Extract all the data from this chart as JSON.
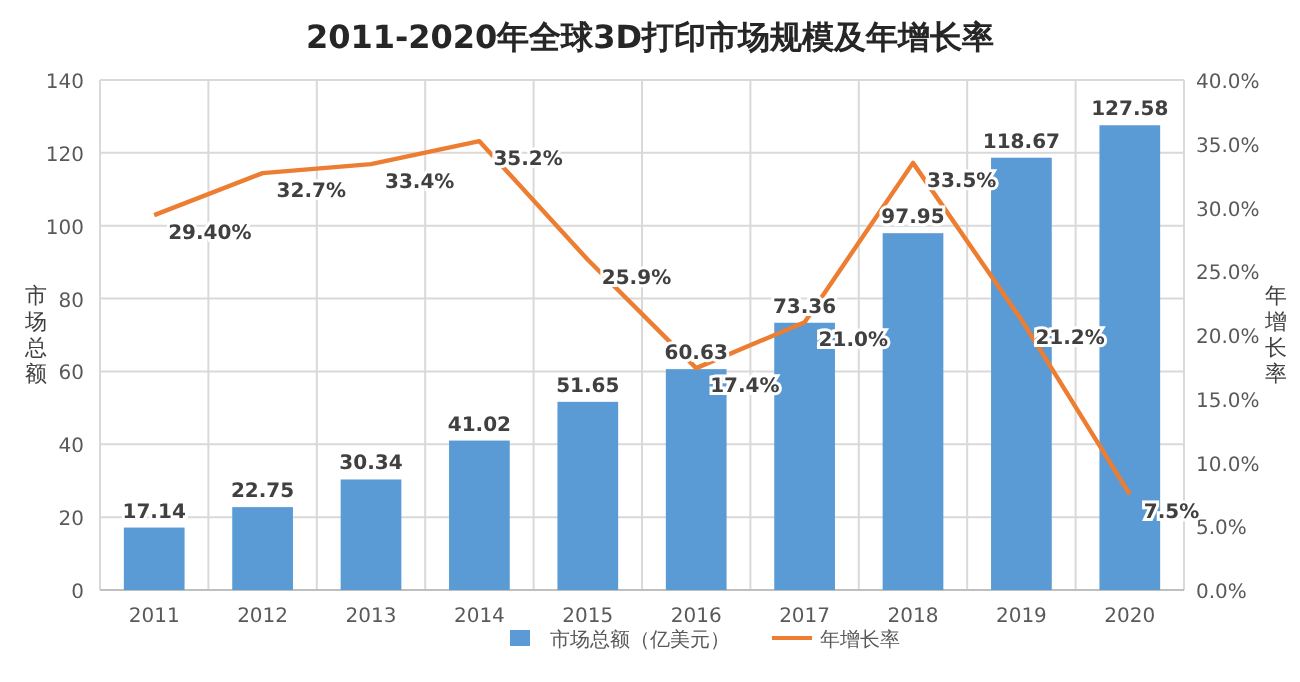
{
  "chart_data": {
    "type": "bar",
    "title": "2011-2020年全球3D打印市场规模及年增长率",
    "ylabel": "市场总额",
    "y2label": "年增长率",
    "categories": [
      "2011",
      "2012",
      "2013",
      "2014",
      "2015",
      "2016",
      "2017",
      "2018",
      "2019",
      "2020"
    ],
    "series": [
      {
        "name": "市场总额（亿美元）",
        "color": "#5b9bd5",
        "values": [
          17.14,
          22.75,
          30.34,
          41.02,
          51.65,
          60.63,
          73.36,
          97.95,
          118.67,
          127.58
        ],
        "value_labels": [
          "17.14",
          "22.75",
          "30.34",
          "41.02",
          "51.65",
          "60.63",
          "73.36",
          "97.95",
          "118.67",
          "127.58"
        ]
      },
      {
        "name": "年增长率",
        "type": "line",
        "axis": "y2",
        "color": "#ed7d31",
        "values": [
          29.4,
          32.7,
          33.4,
          35.2,
          25.9,
          17.4,
          21.0,
          33.5,
          21.2,
          7.5
        ],
        "value_labels": [
          "29.40%",
          "32.7%",
          "33.4%",
          "35.2%",
          "25.9%",
          "17.4%",
          "21.0%",
          "33.5%",
          "21.2%",
          "7.5%"
        ]
      }
    ],
    "ylim": [
      0,
      140
    ],
    "yticks": [
      0,
      20,
      40,
      60,
      80,
      100,
      120,
      140
    ],
    "y2lim": [
      0,
      40
    ],
    "y2ticks": [
      {
        "value": 0,
        "label": "0.0%"
      },
      {
        "value": 5,
        "label": "5.0%"
      },
      {
        "value": 10,
        "label": "10.0%"
      },
      {
        "value": 15,
        "label": "15.0%"
      },
      {
        "value": 20,
        "label": "20.0%"
      },
      {
        "value": 25,
        "label": "25.0%"
      },
      {
        "value": 30,
        "label": "30.0%"
      },
      {
        "value": 35,
        "label": "35.0%"
      },
      {
        "value": 40,
        "label": "40.0%"
      }
    ],
    "grid": true,
    "legend": "bottom"
  }
}
